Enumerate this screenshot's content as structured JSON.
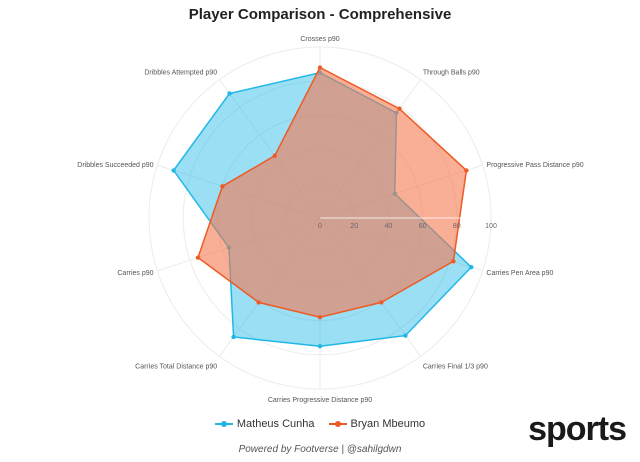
{
  "chart_data": {
    "type": "radar",
    "title": "Player Comparison - Comprehensive",
    "axes": [
      "Crosses p90",
      "Through Balls p90",
      "Progressive Pass Distance p90",
      "Carries Pen Area p90",
      "Carries Final 1/3 p90",
      "Carries Progressive Distance p90",
      "Carries Total Distance p90",
      "Carries p90",
      "Dribbles Succeeded p90",
      "Dribbles Attempted p90"
    ],
    "rlim": [
      0,
      100
    ],
    "ticks": [
      "0",
      "20",
      "40",
      "60",
      "80",
      "100"
    ],
    "tick_values": [
      0,
      20,
      40,
      60,
      80,
      100
    ],
    "grid": true,
    "legend_position": "bottom",
    "series": [
      {
        "name": "Matheus Cunha",
        "color": "#1fb8e6",
        "fill": "rgba(31,184,230,0.45)",
        "values": [
          85,
          76,
          46,
          93,
          85,
          75,
          86,
          56,
          90,
          90
        ]
      },
      {
        "name": "Bryan Mbeumo",
        "color": "#ee5a24",
        "fill": "rgba(245,120,80,0.6)",
        "values": [
          88,
          79,
          90,
          82,
          61,
          58,
          61,
          75,
          60,
          45
        ]
      }
    ]
  },
  "footer": "Powered by Footverse | @sahilgdwn",
  "watermark": "sports"
}
